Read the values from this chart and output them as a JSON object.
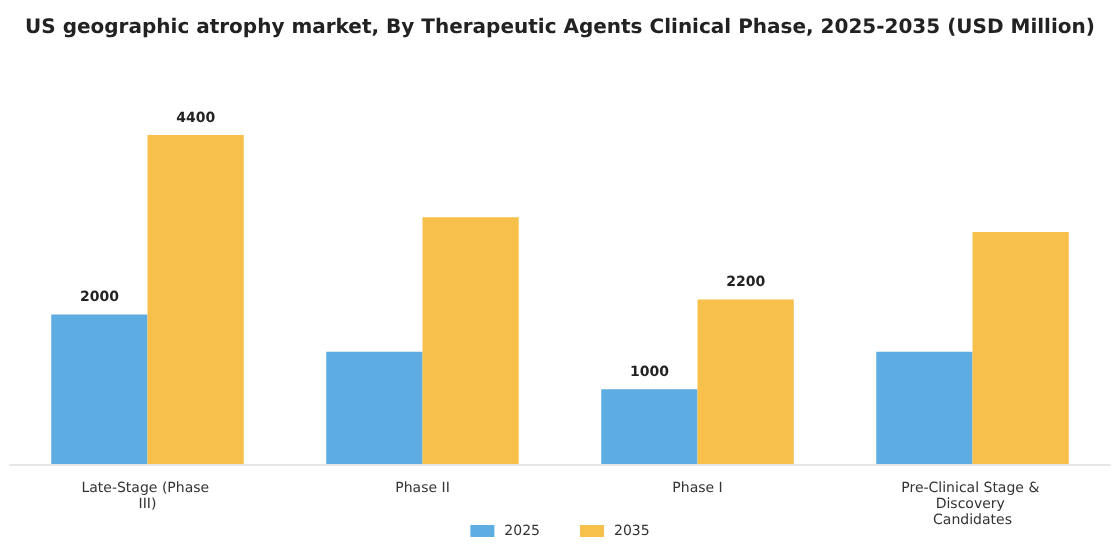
{
  "chart_data": {
    "type": "bar",
    "title": "US geographic atrophy market, By Therapeutic Agents Clinical Phase, 2025-2035 (USD Million)",
    "categories": [
      "Late-Stage (Phase III)",
      "Phase II",
      "Phase I",
      "Pre-Clinical Stage & Discovery Candidates"
    ],
    "series": [
      {
        "name": "2025",
        "color": "#5dade2",
        "values": [
          2000,
          1500,
          1000,
          1500
        ],
        "value_labels": [
          "2000",
          null,
          "1000",
          null
        ]
      },
      {
        "name": "2035",
        "color": "#f7c04a",
        "values": [
          4400,
          3300,
          2200,
          3100
        ],
        "value_labels": [
          "4400",
          null,
          "2200",
          null
        ]
      }
    ],
    "legend": "bottom"
  }
}
